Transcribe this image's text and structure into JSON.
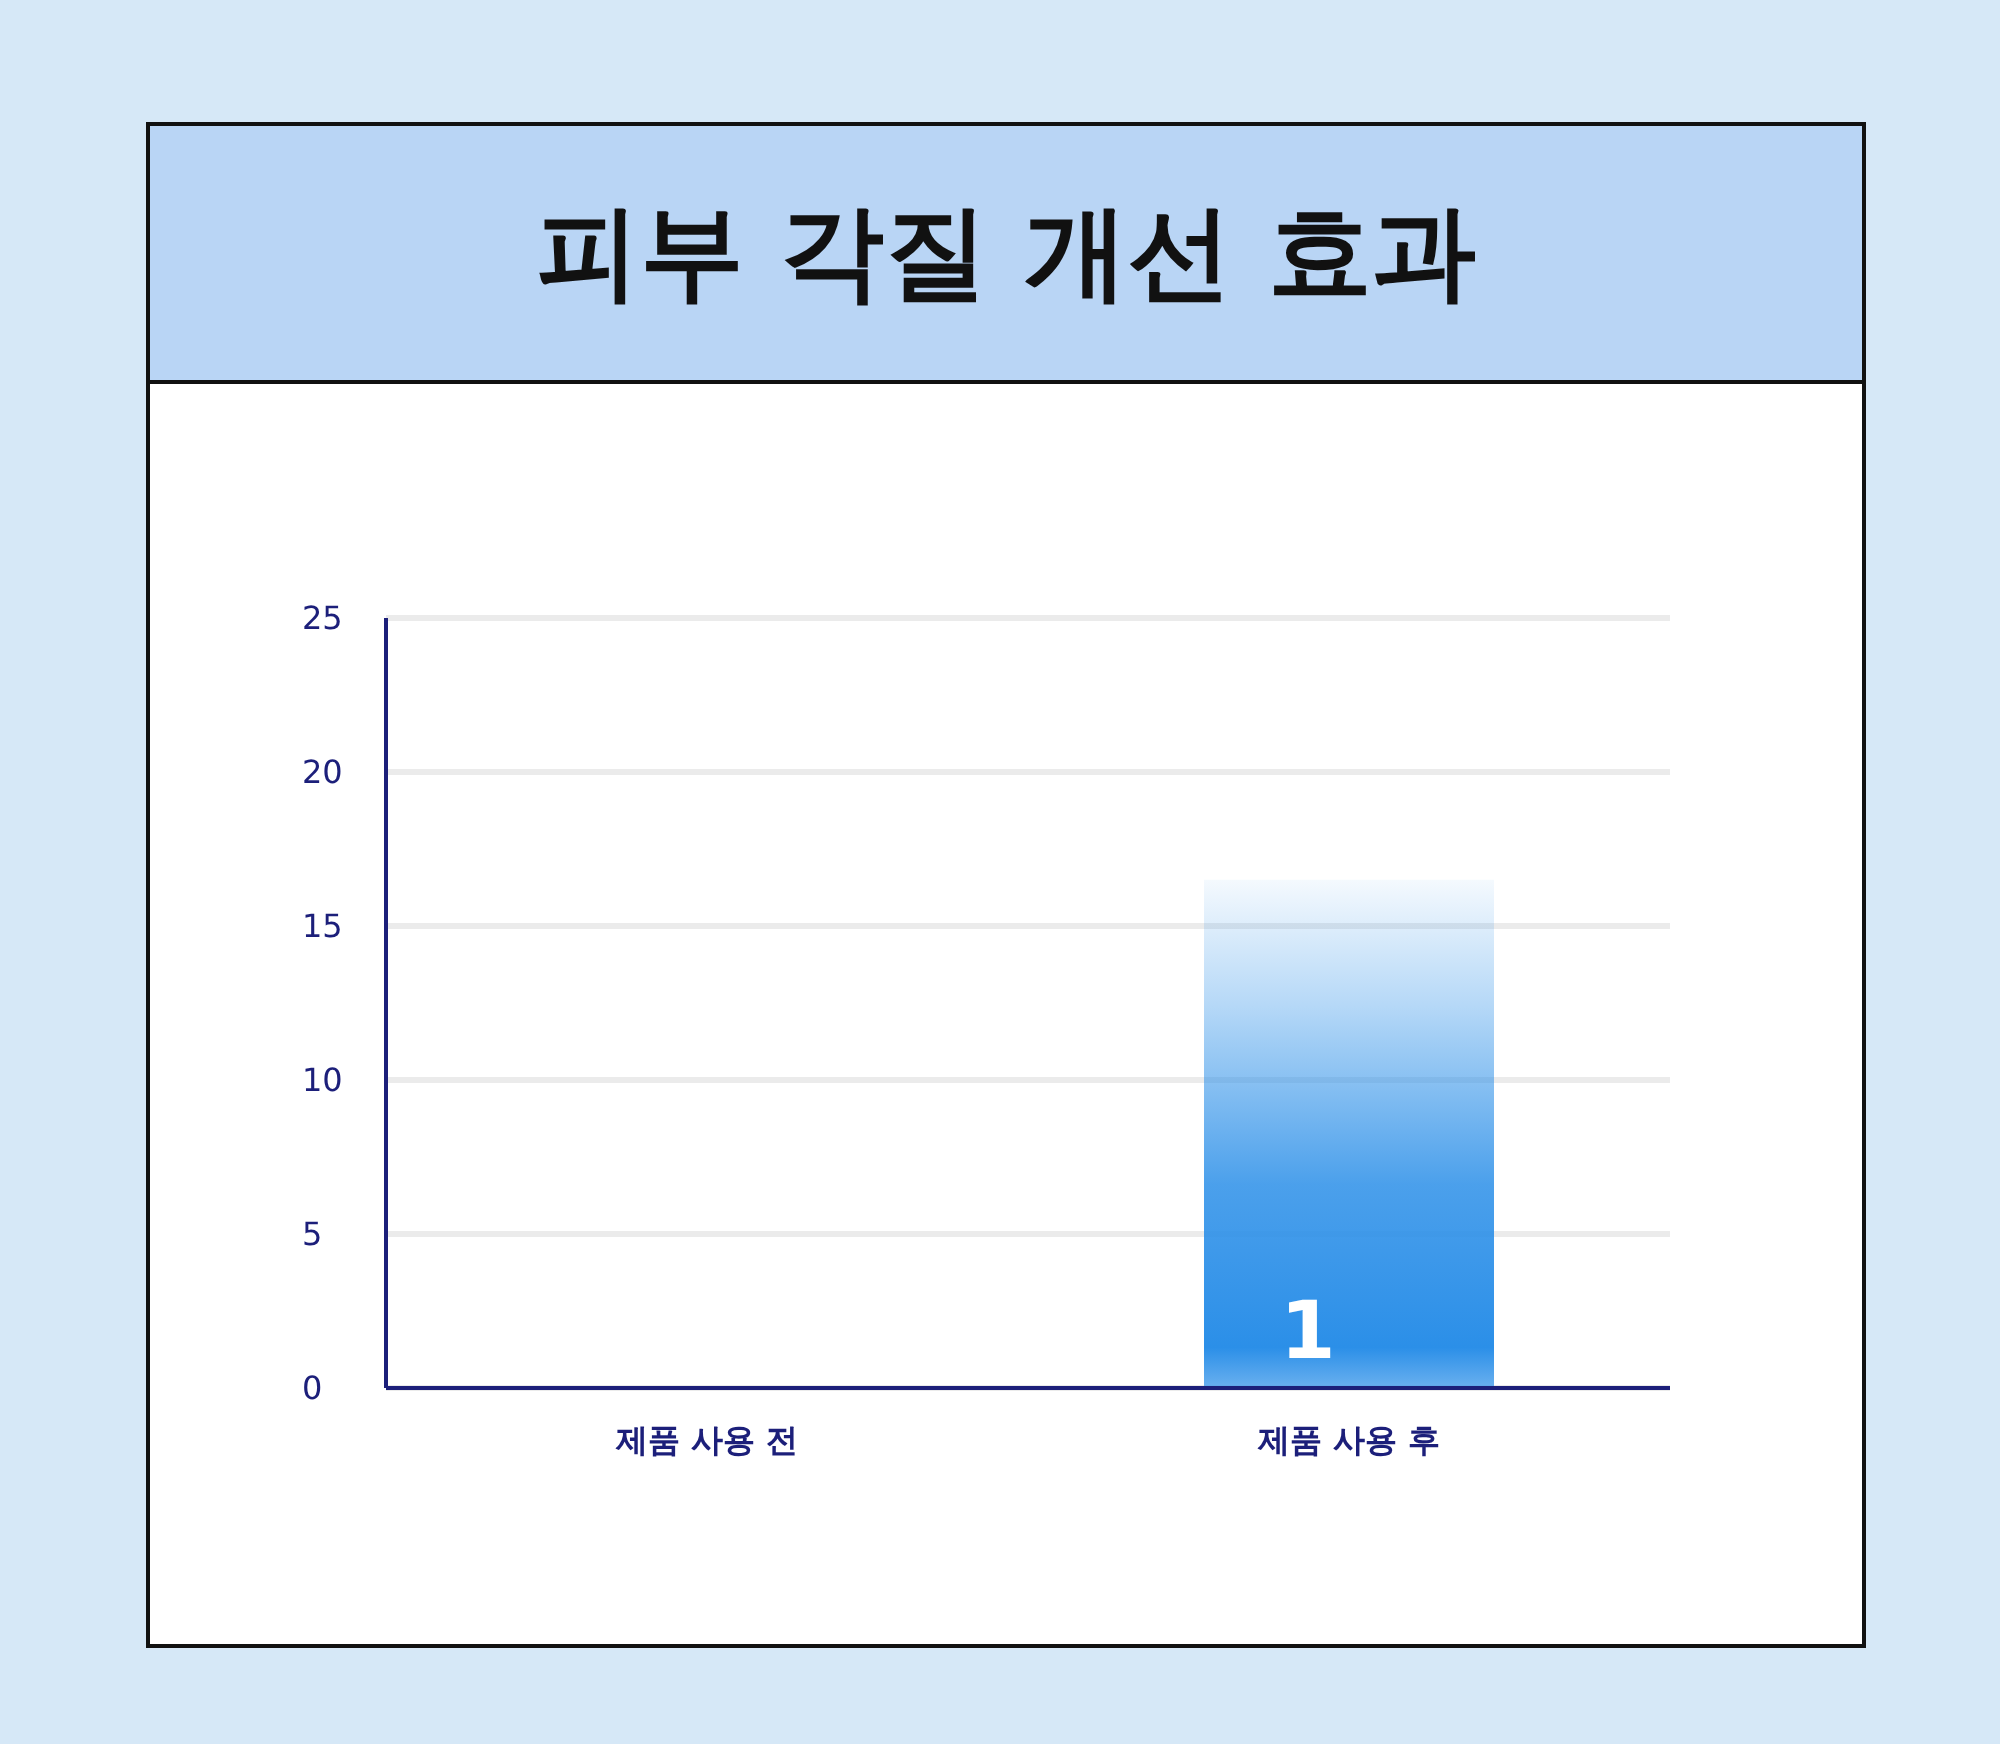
{
  "chart_data": {
    "type": "bar",
    "title": "피부 각질 개선 효과",
    "categories": [
      "제품 사용 전",
      "제품 사용 후"
    ],
    "values": [
      0,
      16.5
    ],
    "annotations": [
      "1"
    ],
    "color": "#2b8fe8",
    "ylim": [
      0,
      25
    ],
    "yticks": [
      0,
      5,
      10,
      15,
      20,
      25
    ],
    "grid": "y"
  }
}
